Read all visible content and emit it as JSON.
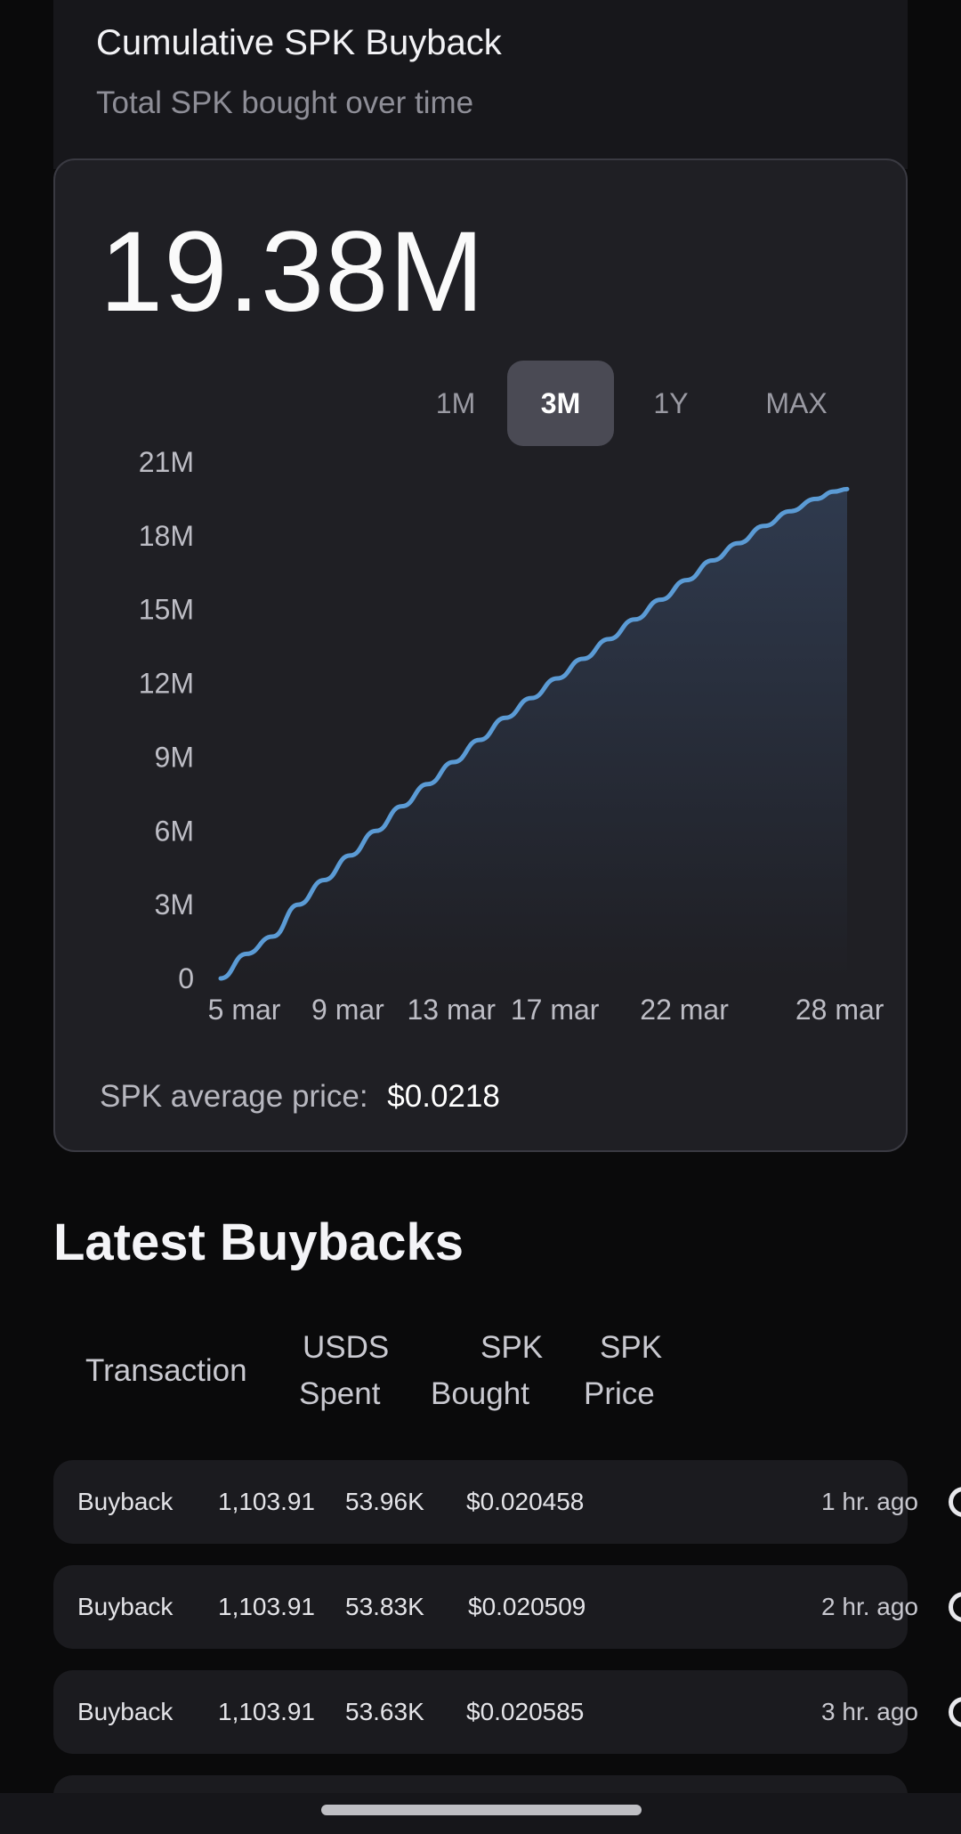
{
  "header": {
    "title": "Cumulative SPK Buyback",
    "subtitle": "Total SPK bought over time"
  },
  "summary": {
    "value": "19.38M",
    "avg_price_label": "SPK average price:",
    "avg_price_value": "$0.0218"
  },
  "range_tabs": [
    {
      "label": "1M",
      "active": false
    },
    {
      "label": "3M",
      "active": true
    },
    {
      "label": "1Y",
      "active": false
    },
    {
      "label": "MAX",
      "active": false
    }
  ],
  "colors": {
    "line": "#5b9bd5",
    "area_top": "#2f3a4e",
    "area_bottom": "#1f1f24"
  },
  "chart_data": {
    "type": "area",
    "ylim": [
      0,
      21000000
    ],
    "y_ticks": [
      0,
      3000000,
      6000000,
      9000000,
      12000000,
      15000000,
      18000000,
      21000000
    ],
    "y_tick_labels": [
      "0",
      "3M",
      "6M",
      "9M",
      "12M",
      "15M",
      "18M",
      "21M"
    ],
    "x_tick_labels": [
      "5 mar",
      "9 mar",
      "13 mar",
      "17 mar",
      "22 mar",
      "28 mar"
    ],
    "x_tick_days": [
      5,
      9,
      13,
      17,
      22,
      28
    ],
    "xlim": [
      4.5,
      28.7
    ],
    "series": [
      {
        "x": [
          4.5,
          5.5,
          6.5,
          7.5,
          8.5,
          9.5,
          10.5,
          11.5,
          12.5,
          13.5,
          14.5,
          15.5,
          16.5,
          17.5,
          18.5,
          19.5,
          20.5,
          21.5,
          22.5,
          23.5,
          24.5,
          25.5,
          26.5,
          27.5,
          28.2,
          28.7
        ],
        "y": [
          0,
          1000000,
          1700000,
          3000000,
          4000000,
          5000000,
          6000000,
          7000000,
          7900000,
          8800000,
          9700000,
          10600000,
          11400000,
          12200000,
          13000000,
          13800000,
          14600000,
          15400000,
          16200000,
          17000000,
          17700000,
          18400000,
          19000000,
          19500000,
          19800000,
          19900000
        ]
      }
    ]
  },
  "table": {
    "section_title": "Latest Buybacks",
    "headers": [
      {
        "line1": "Transaction",
        "line2": ""
      },
      {
        "line1": "USDS",
        "line2": "Spent"
      },
      {
        "line1": "SPK",
        "line2": "Bought"
      },
      {
        "line1": "SPK",
        "line2": "Price"
      }
    ],
    "rows": [
      {
        "type": "Buyback",
        "usds": "1,103.91",
        "spk": "53.96K",
        "price": "$0.020458",
        "time": "1 hr. ago"
      },
      {
        "type": "Buyback",
        "usds": "1,103.91",
        "spk": "53.83K",
        "price": "$0.020509",
        "time": "2 hr. ago"
      },
      {
        "type": "Buyback",
        "usds": "1,103.91",
        "spk": "53.63K",
        "price": "$0.020585",
        "time": "3 hr. ago"
      }
    ]
  }
}
